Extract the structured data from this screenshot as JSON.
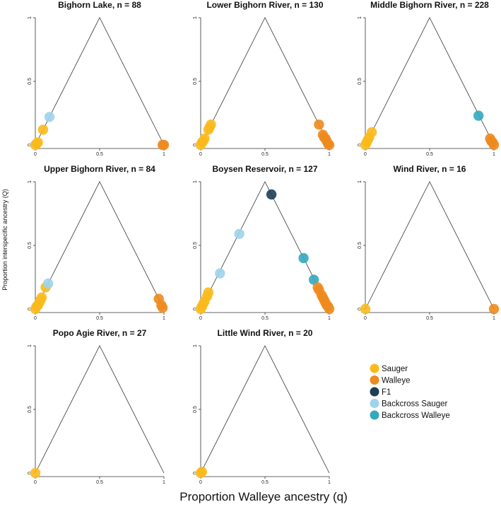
{
  "chart_data": {
    "type": "scatter",
    "xlabel": "Proportion Walleye ancestry (q)",
    "ylabel": "Proportion interspecific ancestry (Q)",
    "xlim": [
      0,
      1
    ],
    "ylim": [
      0,
      1
    ],
    "x_ticks": [
      "0",
      "0.5",
      "1"
    ],
    "y_ticks": [
      "0",
      "0.5",
      "1"
    ],
    "legend": [
      {
        "name": "Sauger",
        "color": "#F9BA1C"
      },
      {
        "name": "Walleye",
        "color": "#EE8A1E"
      },
      {
        "name": "F1",
        "color": "#1C3F55"
      },
      {
        "name": "Backcross Sauger",
        "color": "#9ED3EC"
      },
      {
        "name": "Backcross Walleye",
        "color": "#34A8BE"
      }
    ],
    "panels": [
      {
        "title": "Bighorn Lake, n = 88",
        "points": [
          {
            "q": 0.0,
            "Q": 0.0,
            "group": "Sauger"
          },
          {
            "q": 0.01,
            "Q": 0.01,
            "group": "Sauger"
          },
          {
            "q": 0.02,
            "Q": 0.02,
            "group": "Sauger"
          },
          {
            "q": 0.06,
            "Q": 0.12,
            "group": "Sauger"
          },
          {
            "q": 0.11,
            "Q": 0.22,
            "group": "Backcross Sauger"
          },
          {
            "q": 0.99,
            "Q": 0.0,
            "group": "Walleye"
          },
          {
            "q": 1.0,
            "Q": 0.0,
            "group": "Walleye"
          }
        ]
      },
      {
        "title": "Lower Bighorn River, n = 130",
        "points": [
          {
            "q": 0.0,
            "Q": 0.0,
            "group": "Sauger"
          },
          {
            "q": 0.01,
            "Q": 0.02,
            "group": "Sauger"
          },
          {
            "q": 0.02,
            "Q": 0.03,
            "group": "Sauger"
          },
          {
            "q": 0.03,
            "Q": 0.05,
            "group": "Sauger"
          },
          {
            "q": 0.06,
            "Q": 0.12,
            "group": "Sauger"
          },
          {
            "q": 0.07,
            "Q": 0.14,
            "group": "Sauger"
          },
          {
            "q": 0.08,
            "Q": 0.16,
            "group": "Sauger"
          },
          {
            "q": 0.92,
            "Q": 0.16,
            "group": "Walleye"
          },
          {
            "q": 0.95,
            "Q": 0.08,
            "group": "Walleye"
          },
          {
            "q": 0.96,
            "Q": 0.06,
            "group": "Walleye"
          },
          {
            "q": 0.97,
            "Q": 0.05,
            "group": "Walleye"
          },
          {
            "q": 0.98,
            "Q": 0.03,
            "group": "Walleye"
          },
          {
            "q": 0.99,
            "Q": 0.01,
            "group": "Walleye"
          },
          {
            "q": 1.0,
            "Q": 0.0,
            "group": "Walleye"
          }
        ]
      },
      {
        "title": "Middle Bighorn River, n = 228",
        "points": [
          {
            "q": 0.0,
            "Q": 0.0,
            "group": "Sauger"
          },
          {
            "q": 0.01,
            "Q": 0.02,
            "group": "Sauger"
          },
          {
            "q": 0.02,
            "Q": 0.04,
            "group": "Sauger"
          },
          {
            "q": 0.03,
            "Q": 0.06,
            "group": "Sauger"
          },
          {
            "q": 0.05,
            "Q": 0.1,
            "group": "Sauger"
          },
          {
            "q": 0.88,
            "Q": 0.23,
            "group": "Backcross Walleye"
          },
          {
            "q": 0.97,
            "Q": 0.05,
            "group": "Walleye"
          },
          {
            "q": 0.98,
            "Q": 0.03,
            "group": "Walleye"
          },
          {
            "q": 0.99,
            "Q": 0.02,
            "group": "Walleye"
          },
          {
            "q": 1.0,
            "Q": 0.0,
            "group": "Walleye"
          }
        ]
      },
      {
        "title": "Upper Bighorn River, n = 84",
        "points": [
          {
            "q": 0.0,
            "Q": 0.0,
            "group": "Sauger"
          },
          {
            "q": 0.01,
            "Q": 0.02,
            "group": "Sauger"
          },
          {
            "q": 0.02,
            "Q": 0.03,
            "group": "Sauger"
          },
          {
            "q": 0.03,
            "Q": 0.05,
            "group": "Sauger"
          },
          {
            "q": 0.04,
            "Q": 0.07,
            "group": "Sauger"
          },
          {
            "q": 0.05,
            "Q": 0.09,
            "group": "Sauger"
          },
          {
            "q": 0.08,
            "Q": 0.17,
            "group": "Sauger"
          },
          {
            "q": 0.1,
            "Q": 0.2,
            "group": "Backcross Sauger"
          },
          {
            "q": 0.96,
            "Q": 0.08,
            "group": "Walleye"
          },
          {
            "q": 0.98,
            "Q": 0.03,
            "group": "Walleye"
          },
          {
            "q": 0.99,
            "Q": 0.01,
            "group": "Walleye"
          }
        ]
      },
      {
        "title": "Boysen Reservoir, n = 127",
        "points": [
          {
            "q": 0.0,
            "Q": 0.0,
            "group": "Sauger"
          },
          {
            "q": 0.01,
            "Q": 0.02,
            "group": "Sauger"
          },
          {
            "q": 0.02,
            "Q": 0.04,
            "group": "Sauger"
          },
          {
            "q": 0.03,
            "Q": 0.06,
            "group": "Sauger"
          },
          {
            "q": 0.05,
            "Q": 0.1,
            "group": "Sauger"
          },
          {
            "q": 0.06,
            "Q": 0.13,
            "group": "Sauger"
          },
          {
            "q": 0.15,
            "Q": 0.28,
            "group": "Backcross Sauger"
          },
          {
            "q": 0.3,
            "Q": 0.59,
            "group": "Backcross Sauger"
          },
          {
            "q": 0.55,
            "Q": 0.9,
            "group": "F1"
          },
          {
            "q": 0.8,
            "Q": 0.4,
            "group": "Backcross Walleye"
          },
          {
            "q": 0.88,
            "Q": 0.23,
            "group": "Backcross Walleye"
          },
          {
            "q": 0.91,
            "Q": 0.17,
            "group": "Walleye"
          },
          {
            "q": 0.92,
            "Q": 0.15,
            "group": "Walleye"
          },
          {
            "q": 0.94,
            "Q": 0.11,
            "group": "Walleye"
          },
          {
            "q": 0.95,
            "Q": 0.09,
            "group": "Walleye"
          },
          {
            "q": 0.96,
            "Q": 0.07,
            "group": "Walleye"
          },
          {
            "q": 0.97,
            "Q": 0.05,
            "group": "Walleye"
          },
          {
            "q": 0.98,
            "Q": 0.03,
            "group": "Walleye"
          },
          {
            "q": 0.99,
            "Q": 0.02,
            "group": "Walleye"
          },
          {
            "q": 1.0,
            "Q": 0.0,
            "group": "Walleye"
          }
        ]
      },
      {
        "title": "Wind River, n = 16",
        "points": [
          {
            "q": 0.0,
            "Q": 0.0,
            "group": "Sauger"
          },
          {
            "q": 1.0,
            "Q": 0.0,
            "group": "Walleye"
          }
        ]
      },
      {
        "title": "Popo Agie River, n = 27",
        "points": [
          {
            "q": 0.0,
            "Q": 0.0,
            "group": "Sauger"
          }
        ]
      },
      {
        "title": "Little Wind River, n = 20",
        "points": [
          {
            "q": 0.0,
            "Q": 0.0,
            "group": "Sauger"
          },
          {
            "q": 0.01,
            "Q": 0.01,
            "group": "Sauger"
          }
        ]
      }
    ]
  }
}
